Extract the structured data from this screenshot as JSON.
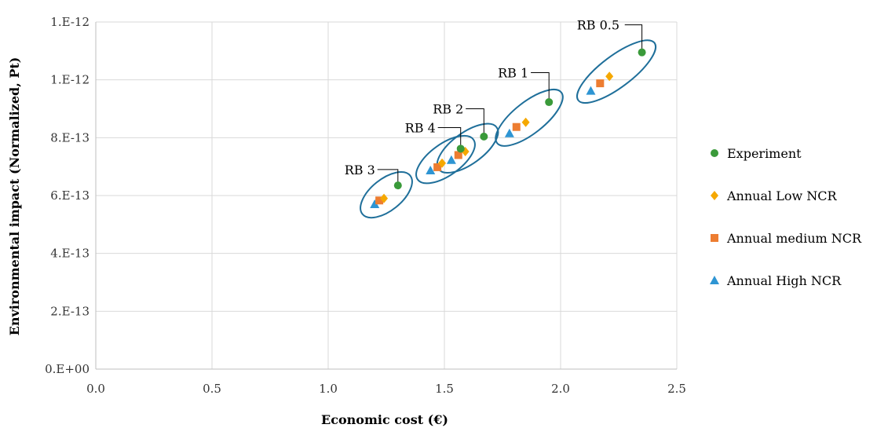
{
  "chart_data": {
    "type": "scatter",
    "title": "",
    "xlabel": "Economic cost (€)",
    "ylabel": "Environmental impact (Normalized, Pt)",
    "xlim": [
      0,
      2.5
    ],
    "ylim": [
      0,
      1.2e-12
    ],
    "x_ticks": [
      0,
      0.5,
      1,
      1.5,
      2,
      2.5
    ],
    "x_tick_labels": [
      "0.0",
      "0.5",
      "1.0",
      "1.5",
      "2.0",
      "2.5"
    ],
    "y_ticks": [
      0,
      2e-13,
      4e-13,
      6e-13,
      8e-13,
      1e-12,
      1.2e-12
    ],
    "y_tick_labels": [
      "0.E+00",
      "2.E-13",
      "4.E-13",
      "6.E-13",
      "8.E-13",
      "1.E-12",
      "1.E-12"
    ],
    "grid": true,
    "legend_position": "right",
    "series": [
      {
        "name": "Experiment",
        "marker": "circle",
        "color": "#3a9a3a",
        "points": [
          {
            "x": 1.3,
            "y": 6.35e-13
          },
          {
            "x": 1.57,
            "y": 7.62e-13
          },
          {
            "x": 1.67,
            "y": 8.04e-13
          },
          {
            "x": 1.95,
            "y": 9.23e-13
          },
          {
            "x": 2.35,
            "y": 1.095e-12
          }
        ]
      },
      {
        "name": "Annual Low NCR",
        "marker": "diamond",
        "color": "#f5a800",
        "points": [
          {
            "x": 1.24,
            "y": 5.9e-13
          },
          {
            "x": 1.49,
            "y": 7.12e-13
          },
          {
            "x": 1.59,
            "y": 7.52e-13
          },
          {
            "x": 1.85,
            "y": 8.53e-13
          },
          {
            "x": 2.21,
            "y": 1.012e-12
          }
        ]
      },
      {
        "name": "Annual medium NCR",
        "marker": "square",
        "color": "#ed7d31",
        "points": [
          {
            "x": 1.22,
            "y": 5.83e-13
          },
          {
            "x": 1.47,
            "y": 6.98e-13
          },
          {
            "x": 1.56,
            "y": 7.4e-13
          },
          {
            "x": 1.81,
            "y": 8.37e-13
          },
          {
            "x": 2.17,
            "y": 9.88e-13
          }
        ]
      },
      {
        "name": "Annual High NCR",
        "marker": "triangle",
        "color": "#2e95d3",
        "points": [
          {
            "x": 1.2,
            "y": 5.7e-13
          },
          {
            "x": 1.44,
            "y": 6.87e-13
          },
          {
            "x": 1.53,
            "y": 7.23e-13
          },
          {
            "x": 1.78,
            "y": 8.15e-13
          },
          {
            "x": 2.13,
            "y": 9.62e-13
          }
        ]
      }
    ],
    "annotations": [
      {
        "text": "RB 3",
        "target_x": 1.3,
        "target_y": 6.35e-13,
        "label_x": 1.07,
        "label_y": 6.9e-13
      },
      {
        "text": "RB 4",
        "target_x": 1.57,
        "target_y": 7.62e-13,
        "label_x": 1.33,
        "label_y": 8.35e-13
      },
      {
        "text": "RB 2",
        "target_x": 1.67,
        "target_y": 8.04e-13,
        "label_x": 1.45,
        "label_y": 9e-13
      },
      {
        "text": "RB 1",
        "target_x": 1.95,
        "target_y": 9.23e-13,
        "label_x": 1.73,
        "label_y": 1.025e-12
      },
      {
        "text": "RB 0.5",
        "target_x": 2.35,
        "target_y": 1.095e-12,
        "label_x": 2.07,
        "label_y": 1.19e-12
      }
    ],
    "groups": [
      {
        "name": "RB 3",
        "x_range": [
          1.2,
          1.3
        ],
        "y_range": [
          5.7e-13,
          6.35e-13
        ]
      },
      {
        "name": "RB 4",
        "x_range": [
          1.44,
          1.57
        ],
        "y_range": [
          6.87e-13,
          7.62e-13
        ]
      },
      {
        "name": "RB 2",
        "x_range": [
          1.53,
          1.67
        ],
        "y_range": [
          7.23e-13,
          8.04e-13
        ]
      },
      {
        "name": "RB 1",
        "x_range": [
          1.78,
          1.95
        ],
        "y_range": [
          8.15e-13,
          9.23e-13
        ]
      },
      {
        "name": "RB 0.5",
        "x_range": [
          2.13,
          2.35
        ],
        "y_range": [
          9.62e-13,
          1.095e-12
        ]
      }
    ],
    "colors": {
      "grid": "#d9d9d9",
      "axis": "#bfbfbf",
      "ellipse": "#1f6f9a"
    }
  }
}
